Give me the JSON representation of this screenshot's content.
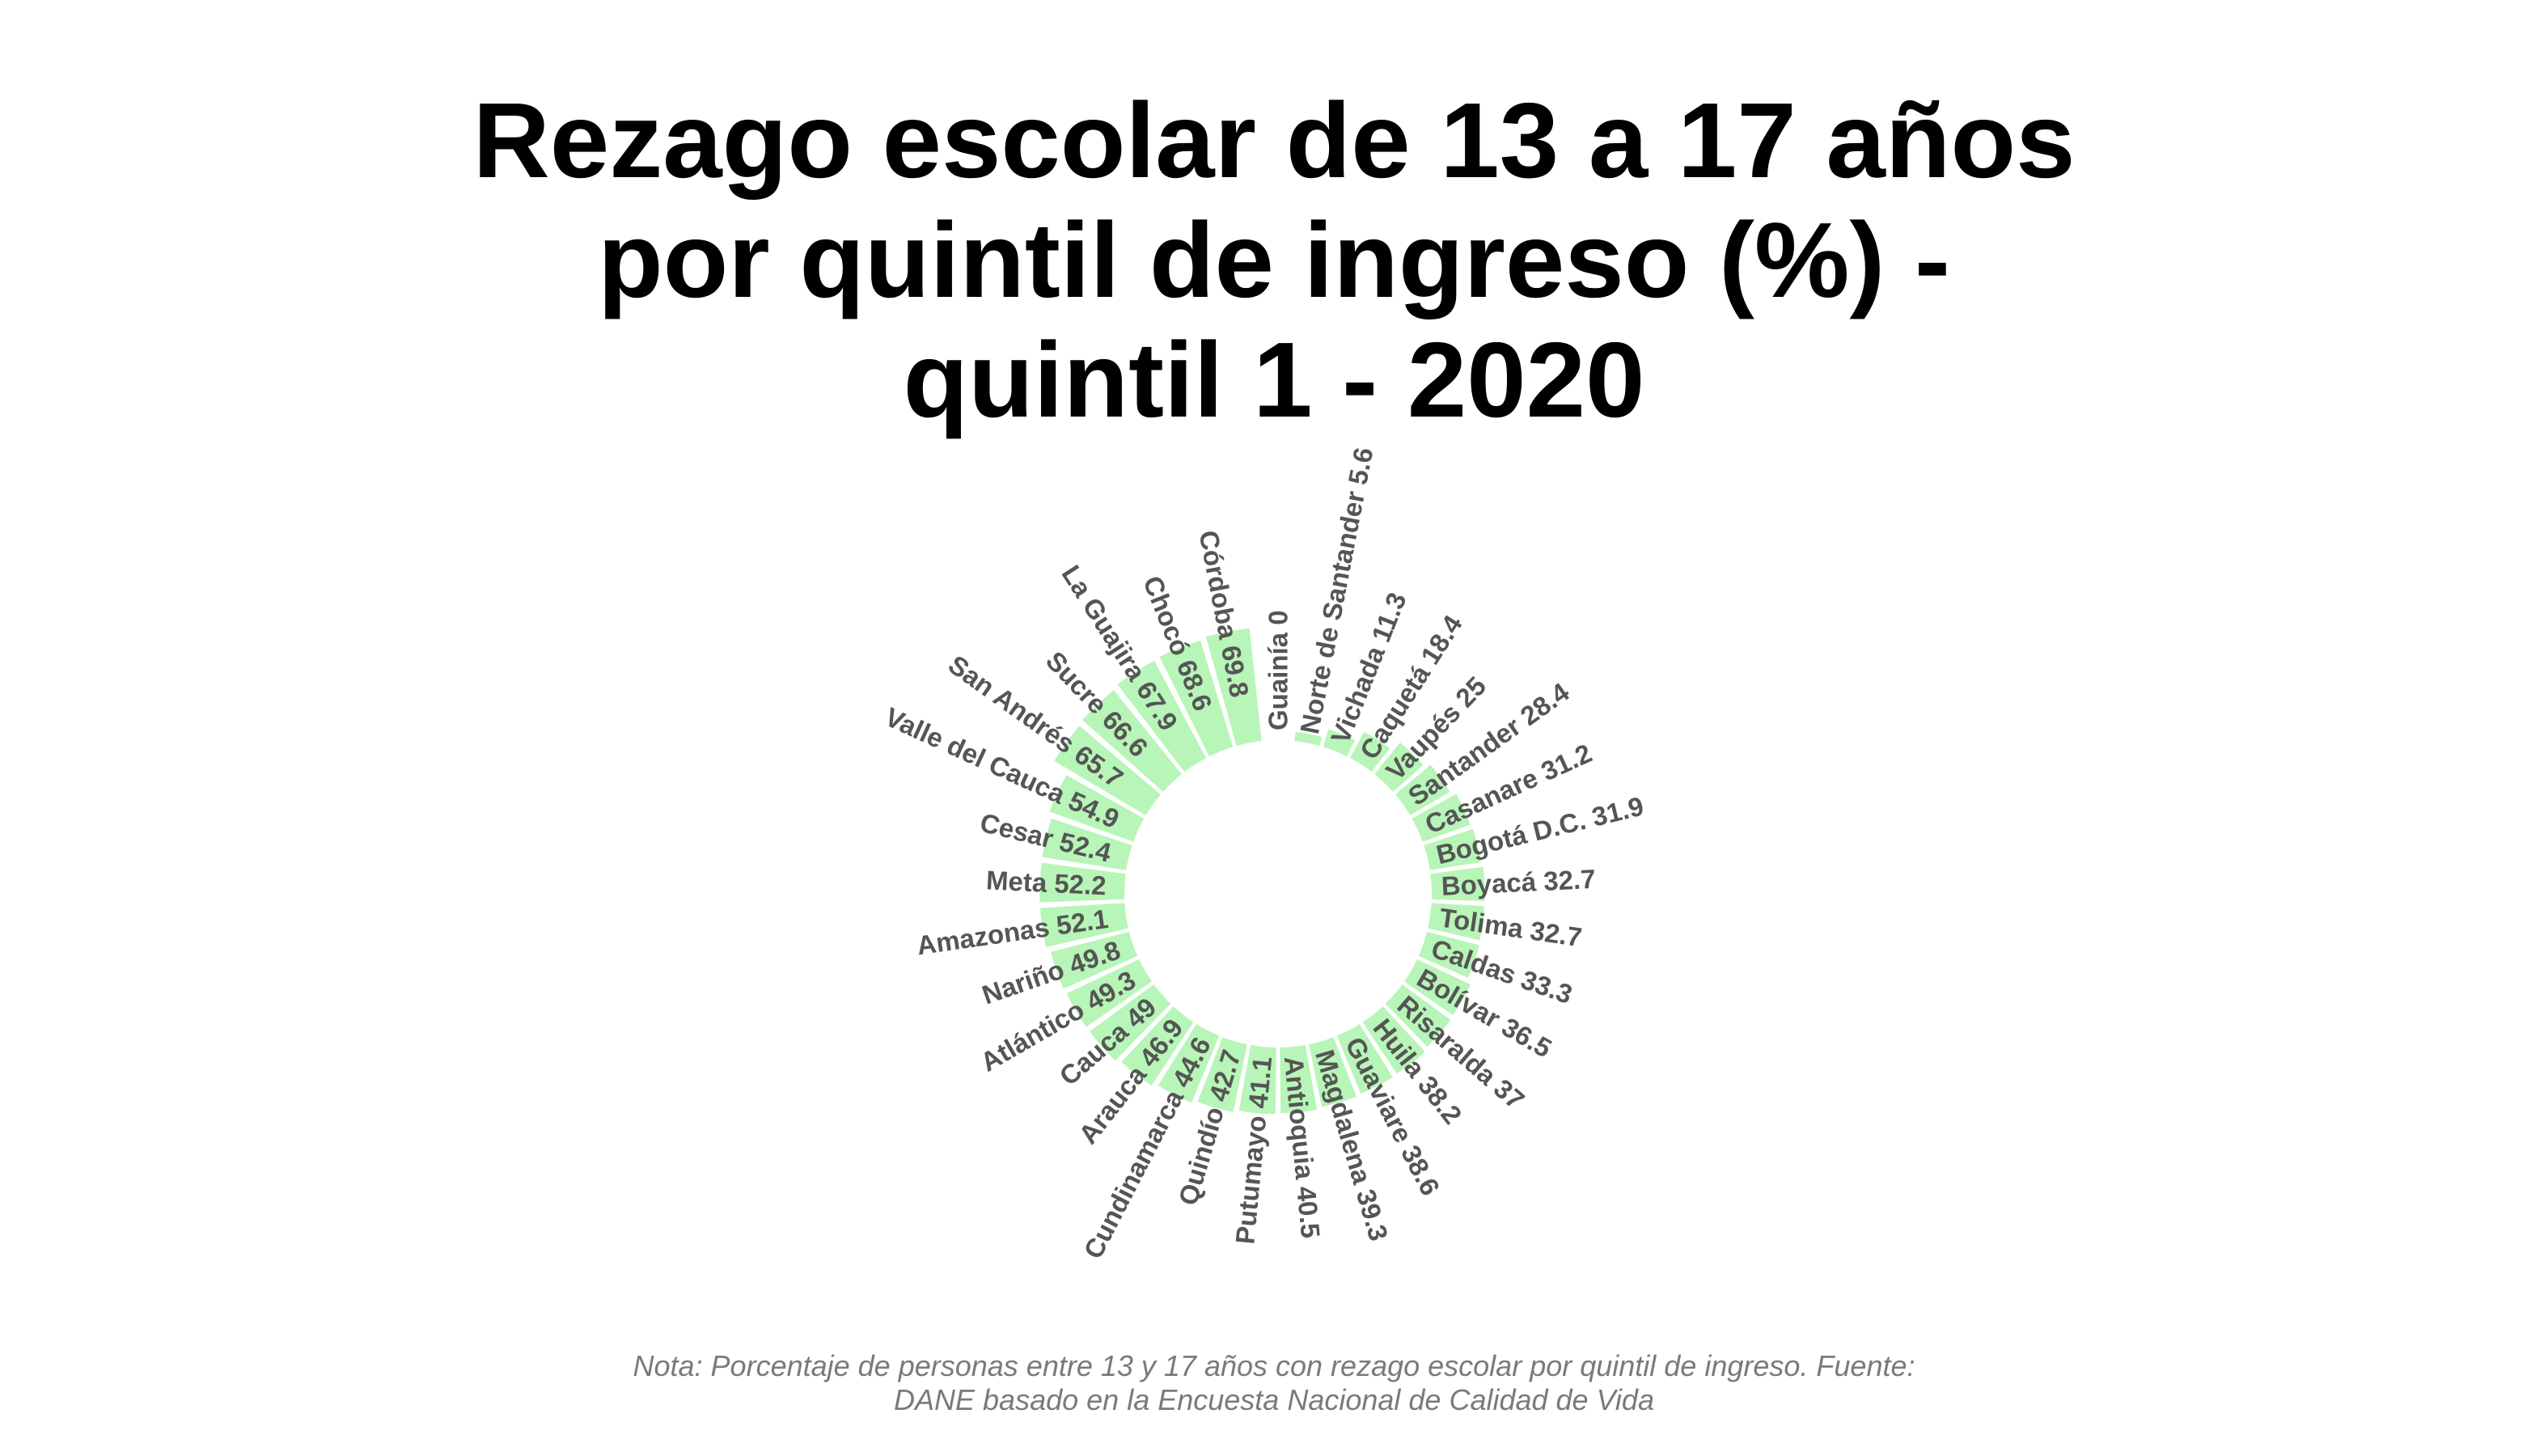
{
  "title_lines": [
    "Rezago escolar de 13 a 17 años",
    "por quintil de ingreso (%) -",
    "quintil 1 - 2020"
  ],
  "caption_lines": [
    "Nota: Porcentaje de personas entre 13 y 17 años con rezago escolar por quintil de ingreso. Fuente:",
    "DANE basado en la Encuesta Nacional de Calidad de Vida"
  ],
  "colors": {
    "bar": "#b8f5b8",
    "label": "#555555",
    "title": "#000000",
    "caption": "#7a7a7a"
  },
  "chart_data": {
    "type": "bar",
    "coordinate_system": "polar",
    "title": "Rezago escolar de 13 a 17 años por quintil de ingreso (%) - quintil 1 - 2020",
    "categories": [
      "Guainía",
      "Norte de Santander",
      "Vichada",
      "Caquetá",
      "Vaupés",
      "Santander",
      "Casanare",
      "Bogotá D.C.",
      "Boyacá",
      "Tolima",
      "Caldas",
      "Bolívar",
      "Risaralda",
      "Huila",
      "Guaviare",
      "Magdalena",
      "Antioquia",
      "Putumayo",
      "Quindío",
      "Cundinamarca",
      "Arauca",
      "Cauca",
      "Atlántico",
      "Nariño",
      "Amazonas",
      "Meta",
      "Cesar",
      "Valle del Cauca",
      "San Andrés",
      "Sucre",
      "La Guajira",
      "Chocó",
      "Córdoba"
    ],
    "values": [
      0,
      5.6,
      11.3,
      18.4,
      25,
      28.4,
      31.2,
      31.9,
      32.7,
      32.7,
      33.3,
      36.5,
      37,
      38.2,
      38.6,
      39.3,
      40.5,
      41.1,
      42.7,
      44.6,
      46.9,
      49,
      49.3,
      49.8,
      52.1,
      52.2,
      52.4,
      54.9,
      65.7,
      66.6,
      67.9,
      68.6,
      69.8
    ],
    "labels": [
      "Guainía 0",
      "Norte de Santander 5.6",
      "Vichada 11.3",
      "Caquetá 18.4",
      "Vaupés 25",
      "Santander 28.4",
      "Casanare 31.2",
      "Bogotá D.C. 31.9",
      "Boyacá 32.7",
      "Tolima 32.7",
      "Caldas 33.3",
      "Bolívar 36.5",
      "Risaralda 37",
      "Huila 38.2",
      "Guaviare 38.6",
      "Magdalena 39.3",
      "Antioquia 40.5",
      "Putumayo 41.1",
      "Quindío 42.7",
      "Cundinamarca 44.6",
      "Arauca 46.9",
      "Cauca 49",
      "Atlántico 49.3",
      "Nariño 49.8",
      "Amazonas 52.1",
      "Meta 52.2",
      "Cesar 52.4",
      "Valle del Cauca 54.9",
      "San Andrés 65.7",
      "Sucre 66.6",
      "La Guajira 67.9",
      "Chocó 68.6",
      "Córdoba 69.8"
    ],
    "ylim": [
      0,
      69.8
    ],
    "grid": false,
    "legend": "none"
  }
}
